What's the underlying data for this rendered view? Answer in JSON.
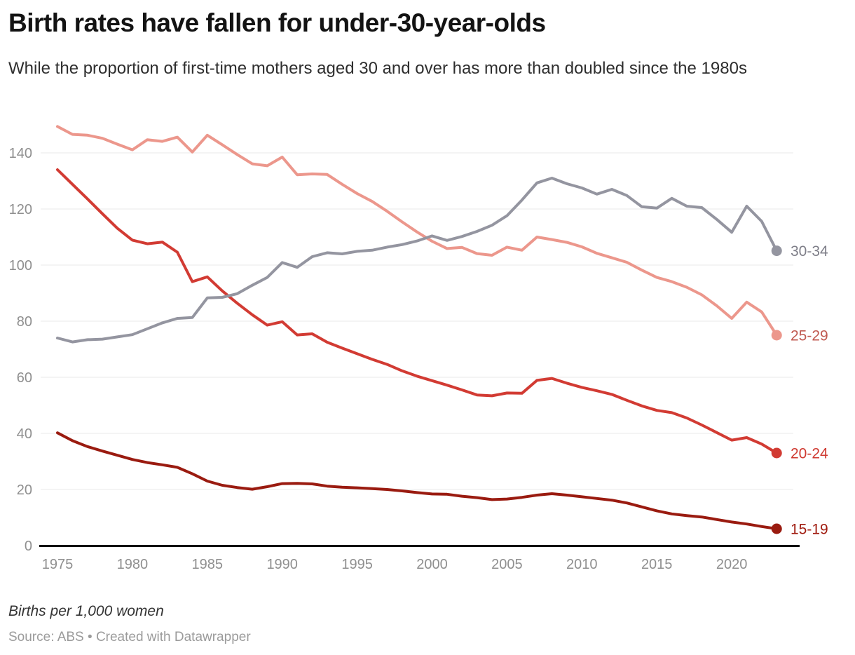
{
  "header": {
    "title": "Birth rates have fallen for under-30-year-olds",
    "subtitle": "While the proportion of first-time mothers aged 30 and over has more than doubled since the 1980s"
  },
  "footer": {
    "note": "Births per 1,000 women",
    "source": "Source: ABS • Created with Datawrapper"
  },
  "chart_data": {
    "type": "line",
    "title": "Birth rates have fallen for under-30-year-olds",
    "subtitle": "While the proportion of first-time mothers aged 30 and over has more than doubled since the 1980s",
    "ylabel": "Births per 1,000 women",
    "xlabel": "",
    "ylim": [
      0,
      152
    ],
    "xlim": [
      1975,
      2023
    ],
    "grid": true,
    "legend_position": "line-end-labels",
    "years": [
      1975,
      1976,
      1977,
      1978,
      1979,
      1980,
      1981,
      1982,
      1983,
      1984,
      1985,
      1986,
      1987,
      1988,
      1989,
      1990,
      1991,
      1992,
      1993,
      1994,
      1995,
      1996,
      1997,
      1998,
      1999,
      2000,
      2001,
      2002,
      2003,
      2004,
      2005,
      2006,
      2007,
      2008,
      2009,
      2010,
      2011,
      2012,
      2013,
      2014,
      2015,
      2016,
      2017,
      2018,
      2019,
      2020,
      2021,
      2022,
      2023
    ],
    "axis": {
      "x_ticks": [
        1975,
        1980,
        1985,
        1990,
        1995,
        2000,
        2005,
        2010,
        2015,
        2020
      ],
      "y_ticks": [
        0,
        20,
        40,
        60,
        80,
        100,
        120,
        140
      ]
    },
    "style": {
      "grid_color": "#e8e8e8",
      "axis_color": "#111111",
      "tick_label_color": "#8f8f8f"
    },
    "series": [
      {
        "name": "25-29",
        "color": "#ec978c",
        "label_color": "#c05a51",
        "values": [
          149.4,
          146.6,
          146.3,
          145.2,
          143.1,
          141.1,
          144.7,
          144.1,
          145.6,
          140.3,
          146.3,
          142.9,
          139.4,
          136.1,
          135.4,
          138.5,
          132.2,
          132.5,
          132.3,
          128.8,
          125.5,
          122.7,
          119.2,
          115.4,
          111.8,
          108.5,
          105.9,
          106.3,
          104.1,
          103.5,
          106.4,
          105.3,
          110.0,
          109.1,
          108.1,
          106.5,
          104.2,
          102.6,
          101.0,
          98.2,
          95.6,
          94.1,
          92.1,
          89.4,
          85.5,
          81.0,
          86.8,
          83.3,
          75.0
        ]
      },
      {
        "name": "20-24",
        "color": "#d23b33",
        "label_color": "#cf3a31",
        "values": [
          134.0,
          128.8,
          123.6,
          118.3,
          113.1,
          108.9,
          107.6,
          108.2,
          104.6,
          94.1,
          95.8,
          90.8,
          86.4,
          82.3,
          78.6,
          79.8,
          75.1,
          75.5,
          72.5,
          70.4,
          68.4,
          66.4,
          64.6,
          62.3,
          60.4,
          58.8,
          57.2,
          55.5,
          53.7,
          53.4,
          54.4,
          54.3,
          58.9,
          59.6,
          57.9,
          56.4,
          55.2,
          53.9,
          51.8,
          49.8,
          48.2,
          47.4,
          45.5,
          43.0,
          40.3,
          37.6,
          38.5,
          36.2,
          33.0
        ]
      },
      {
        "name": "15-19",
        "color": "#9a1b10",
        "label_color": "#a01b0f",
        "values": [
          40.2,
          37.4,
          35.3,
          33.7,
          32.2,
          30.7,
          29.6,
          28.8,
          27.9,
          25.6,
          23.0,
          21.5,
          20.7,
          20.1,
          21.0,
          22.1,
          22.2,
          22.0,
          21.2,
          20.8,
          20.6,
          20.3,
          20.0,
          19.5,
          18.9,
          18.4,
          18.3,
          17.6,
          17.1,
          16.4,
          16.6,
          17.2,
          18.0,
          18.5,
          18.0,
          17.4,
          16.8,
          16.2,
          15.2,
          13.8,
          12.4,
          11.3,
          10.7,
          10.2,
          9.3,
          8.4,
          7.7,
          6.8,
          6.0
        ]
      },
      {
        "name": "30-34",
        "color": "#9495a0",
        "label_color": "#7e7e88",
        "values": [
          74.0,
          72.6,
          73.4,
          73.6,
          74.4,
          75.2,
          77.3,
          79.4,
          81.0,
          81.3,
          88.3,
          88.5,
          89.8,
          92.8,
          95.6,
          100.9,
          99.2,
          103.0,
          104.4,
          104.0,
          104.9,
          105.3,
          106.4,
          107.3,
          108.6,
          110.4,
          108.8,
          110.2,
          112.0,
          114.2,
          117.6,
          123.2,
          129.3,
          131.0,
          129.0,
          127.5,
          125.3,
          127.0,
          124.8,
          120.8,
          120.3,
          123.8,
          121.0,
          120.5,
          116.3,
          111.7,
          121.0,
          115.6,
          105.1
        ]
      }
    ]
  }
}
